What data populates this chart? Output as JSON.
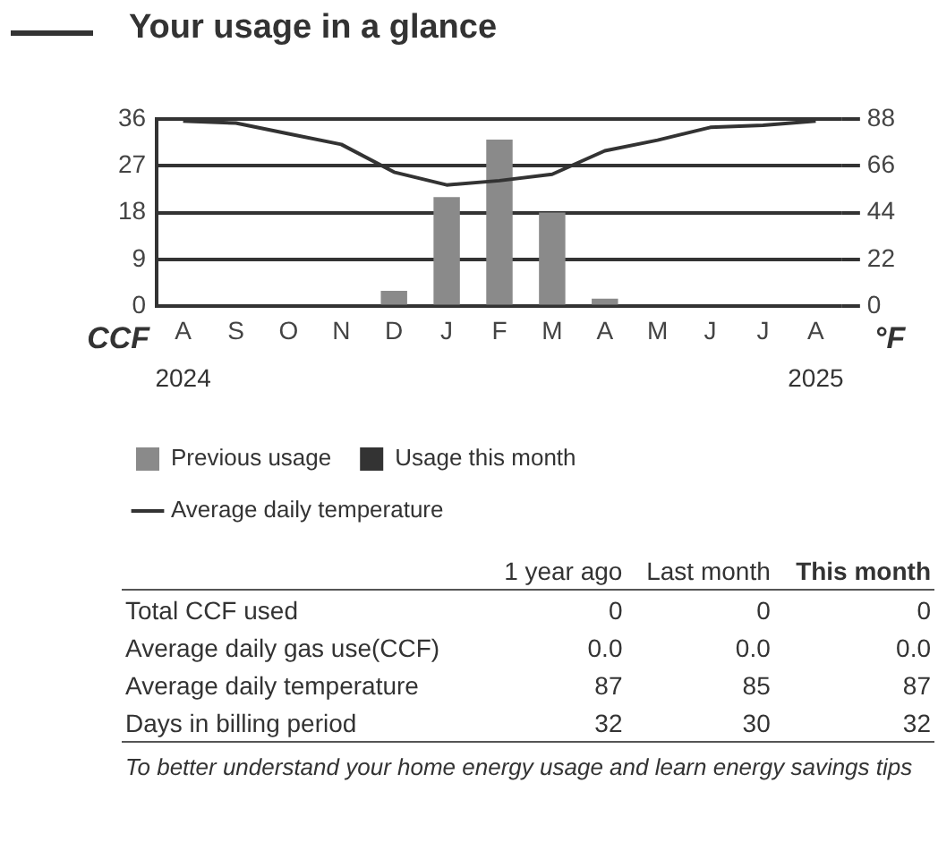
{
  "chart_data": {
    "type": "bar",
    "title": "Your usage in a glance",
    "ylabel": "CCF",
    "y2label": "°F",
    "categories": [
      "A",
      "S",
      "O",
      "N",
      "D",
      "J",
      "F",
      "M",
      "A",
      "M",
      "J",
      "J",
      "A"
    ],
    "stacked": true,
    "series": [
      {
        "name": "Previous usage",
        "type": "bar",
        "color": "#8a8a8a",
        "values": [
          0,
          0,
          0,
          0,
          3,
          21,
          32,
          18,
          1.5,
          0,
          0,
          0,
          null
        ]
      },
      {
        "name": "Usage this month",
        "type": "bar",
        "color": "#333333",
        "values": [
          null,
          null,
          null,
          null,
          null,
          null,
          null,
          null,
          null,
          null,
          null,
          null,
          0
        ]
      },
      {
        "name": "Average daily temperature",
        "type": "line",
        "axis": "y2",
        "color": "#333333",
        "values": [
          87,
          86,
          81,
          76,
          63,
          57,
          59,
          62,
          73,
          78,
          84,
          85,
          87
        ]
      }
    ],
    "ylim": [
      0,
      36
    ],
    "yticks": [
      0,
      9,
      18,
      27,
      36
    ],
    "y2lim": [
      0,
      88
    ],
    "y2ticks": [
      0,
      22,
      44,
      66,
      88
    ],
    "grid": "y",
    "legend": "bottom",
    "marker": "none",
    "line_style": "solid",
    "annotations": [
      "2024",
      "2025",
      "1 year ago",
      "Last month",
      "This month",
      "Total CCF used",
      "0",
      "0",
      "0",
      "Average daily gas use(CCF)",
      "0.0",
      "0.0",
      "0.0",
      "Average daily temperature",
      "87",
      "85",
      "87",
      "Days in billing period",
      "32",
      "30",
      "32",
      "To better understand your home energy usage and learn energy savings tips"
    ]
  }
}
